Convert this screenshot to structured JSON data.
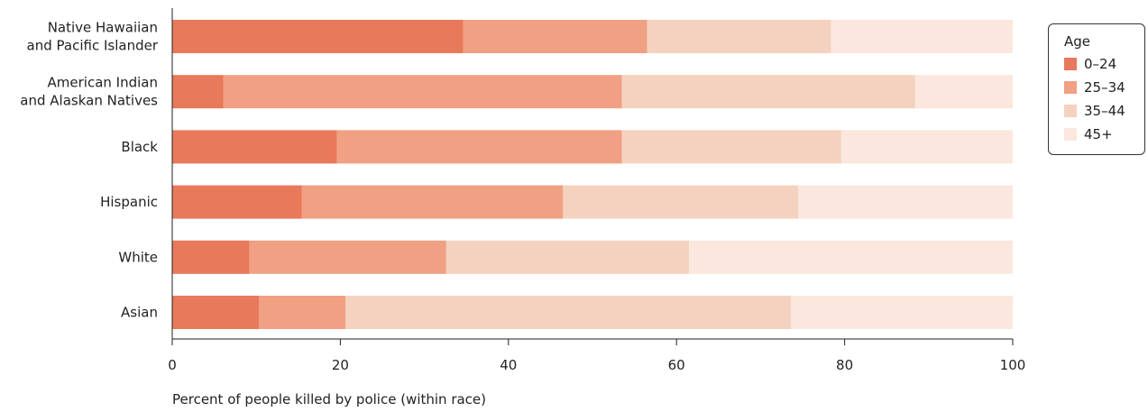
{
  "chart_data": {
    "type": "bar",
    "orientation": "horizontal",
    "stacked": true,
    "categories": [
      [
        "Native Hawaiian",
        "and Pacific Islander"
      ],
      [
        "American Indian",
        "and Alaskan Natives"
      ],
      [
        "Black"
      ],
      [
        "Hispanic"
      ],
      [
        "White"
      ],
      [
        "Asian"
      ]
    ],
    "series": [
      {
        "name": "0–24",
        "color": "#e8795a",
        "values": [
          34.6,
          6.1,
          19.6,
          15.4,
          9.2,
          10.3
        ]
      },
      {
        "name": "25–34",
        "color": "#f0a083",
        "values": [
          21.9,
          47.4,
          33.9,
          31.1,
          23.4,
          10.3
        ]
      },
      {
        "name": "35–44",
        "color": "#f5d2c0",
        "values": [
          21.9,
          34.9,
          26.1,
          28.0,
          28.9,
          53.0
        ]
      },
      {
        "name": "45+",
        "color": "#fbe7dd",
        "values": [
          21.6,
          11.6,
          20.4,
          25.5,
          38.5,
          26.4
        ]
      }
    ],
    "xlabel": "Percent of people killed by police (within race)",
    "ylabel": "",
    "xlim": [
      0,
      100
    ],
    "xticks": [
      0,
      20,
      40,
      60,
      80,
      100
    ],
    "grid": false,
    "legend": {
      "title": "Age",
      "placement": "right"
    }
  }
}
